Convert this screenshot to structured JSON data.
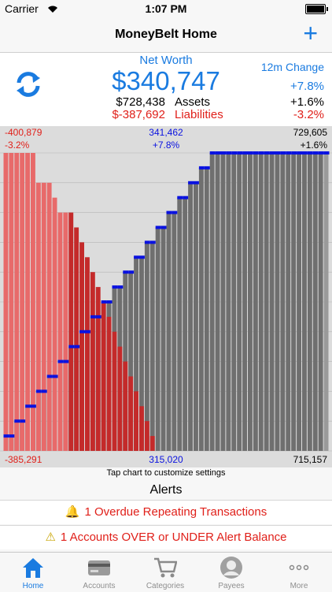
{
  "status_bar": {
    "carrier": "Carrier",
    "time": "1:07 PM"
  },
  "nav": {
    "title": "MoneyBelt Home",
    "add_icon": "plus-icon"
  },
  "summary": {
    "net_worth_label": "Net Worth",
    "net_worth_value": "$340,747",
    "assets_value": "$728,438",
    "assets_label": "Assets",
    "liabilities_value": "$-387,692",
    "liabilities_label": "Liabilities",
    "change_label": "12m Change",
    "change_net_worth": "+7.8%",
    "change_assets": "+1.6%",
    "change_liabilities": "-3.2%"
  },
  "chart_labels": {
    "top_left_value": "-400,879",
    "top_left_pct": "-3.2%",
    "top_mid_value": "341,462",
    "top_mid_pct": "+7.8%",
    "top_right_value": "729,605",
    "top_right_pct": "+1.6%",
    "bottom_left": "-385,291",
    "bottom_mid": "315,020",
    "bottom_right": "715,157"
  },
  "chart_data": {
    "type": "bar",
    "series": [
      {
        "name": "Liabilities",
        "values": [
          1,
          1,
          1,
          1,
          1,
          1,
          0.9,
          0.9,
          0.9,
          0.85,
          0.8,
          0.8,
          0.8,
          0.75,
          0.7,
          0.65,
          0.6,
          0.55,
          0.5,
          0.45,
          0.4,
          0.35,
          0.3,
          0.25,
          0.2,
          0.15,
          0.1,
          0.05,
          0,
          0,
          0,
          0,
          0,
          0,
          0,
          0,
          0,
          0,
          0,
          0,
          0,
          0,
          0,
          0,
          0,
          0,
          0,
          0,
          0,
          0,
          0,
          0,
          0,
          0,
          0,
          0,
          0,
          0,
          0,
          0
        ]
      },
      {
        "name": "Assets",
        "values": [
          0.05,
          0.05,
          0.1,
          0.1,
          0.15,
          0.15,
          0.2,
          0.2,
          0.25,
          0.25,
          0.3,
          0.3,
          0.35,
          0.35,
          0.4,
          0.4,
          0.45,
          0.45,
          0.5,
          0.5,
          0.55,
          0.55,
          0.6,
          0.6,
          0.65,
          0.65,
          0.7,
          0.7,
          0.75,
          0.75,
          0.8,
          0.8,
          0.85,
          0.85,
          0.9,
          0.9,
          0.95,
          0.95,
          1,
          1,
          1,
          1,
          1,
          1,
          1,
          1,
          1,
          1,
          1,
          1,
          1,
          1,
          1,
          1,
          1,
          1,
          1,
          1,
          1,
          1
        ]
      },
      {
        "name": "Net Worth",
        "values": [
          0.05,
          0.05,
          0.1,
          0.1,
          0.15,
          0.15,
          0.2,
          0.2,
          0.25,
          0.25,
          0.3,
          0.3,
          0.35,
          0.35,
          0.4,
          0.4,
          0.45,
          0.45,
          0.5,
          0.5,
          0.55,
          0.55,
          0.6,
          0.6,
          0.65,
          0.65,
          0.7,
          0.7,
          0.75,
          0.75,
          0.8,
          0.8,
          0.85,
          0.85,
          0.9,
          0.9,
          0.95,
          0.95,
          1,
          1,
          1,
          1,
          1,
          1,
          1,
          1,
          1,
          1,
          1,
          1,
          1,
          1,
          1,
          1,
          1,
          1,
          1,
          1,
          1,
          1
        ]
      }
    ],
    "colors": {
      "liabilities_past": "#e86a6a",
      "liabilities": "#c42a2a",
      "assets": "#6f6f6f",
      "net_worth": "#0a12e0"
    }
  },
  "hint": "Tap chart to customize settings",
  "alerts": {
    "title": "Alerts",
    "items": [
      {
        "icon": "bell-icon",
        "text": "1 Overdue Repeating Transactions"
      },
      {
        "icon": "warning-icon",
        "text": "1 Accounts OVER or UNDER Alert Balance"
      }
    ]
  },
  "tabs": [
    {
      "label": "Home",
      "icon": "home-icon",
      "active": true
    },
    {
      "label": "Accounts",
      "icon": "card-icon",
      "active": false
    },
    {
      "label": "Categories",
      "icon": "cart-icon",
      "active": false
    },
    {
      "label": "Payees",
      "icon": "person-icon",
      "active": false
    },
    {
      "label": "More",
      "icon": "more-icon",
      "active": false
    }
  ]
}
